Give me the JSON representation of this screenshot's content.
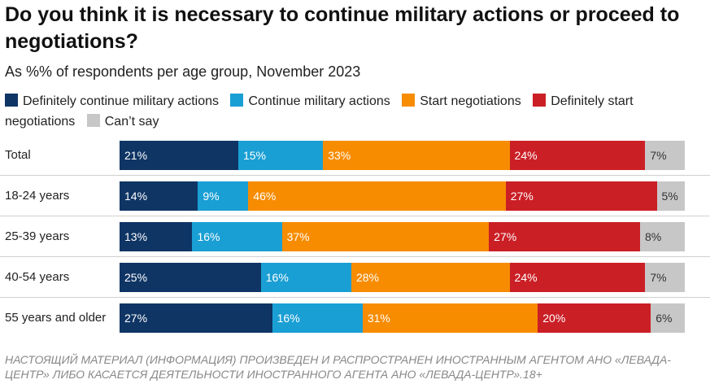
{
  "title": "Do you think it is necessary to continue military actions or proceed to negotiations?",
  "subtitle": "As %% of respondents per age group, November 2023",
  "footer": "НАСТОЯЩИЙ МАТЕРИАЛ (ИНФОРМАЦИЯ) ПРОИЗВЕДЕН И РАСПРОСТРАНЕН ИНОСТРАННЫМ АГЕНТОМ АНО «ЛЕВАДА-ЦЕНТР» ЛИБО КАСАЕТСЯ ДЕЯТЕЛЬНОСТИ ИНОСТРАННОГО АГЕНТА АНО «ЛЕВАДА-ЦЕНТР».18+",
  "chart_data": {
    "type": "bar",
    "orientation": "horizontal",
    "stacked": true,
    "title": "Do you think it is necessary to continue military actions or proceed to negotiations?",
    "subtitle": "As %% of respondents per age group, November 2023",
    "xlabel": "",
    "ylabel": "",
    "xlim": [
      0,
      100
    ],
    "legend_position": "top",
    "categories": [
      "Total",
      "18-24 years",
      "25-39 years",
      "40-54 years",
      "55 years and older"
    ],
    "series": [
      {
        "name": "Definitely continue military actions",
        "color": "#0f3565",
        "label_color": "#ffffff",
        "values": [
          21,
          14,
          13,
          25,
          27
        ]
      },
      {
        "name": "Continue military actions",
        "color": "#1a9fd4",
        "label_color": "#ffffff",
        "values": [
          15,
          9,
          16,
          16,
          16
        ]
      },
      {
        "name": "Start negotiations",
        "color": "#f78c00",
        "label_color": "#ffffff",
        "values": [
          33,
          46,
          37,
          28,
          31
        ]
      },
      {
        "name": "Definitely start negotiations",
        "color": "#cb1f26",
        "label_color": "#ffffff",
        "values": [
          24,
          27,
          27,
          24,
          20
        ]
      },
      {
        "name": "Can’t say",
        "color": "#c7c7c7",
        "label_color": "#333333",
        "values": [
          7,
          5,
          8,
          7,
          6
        ]
      }
    ]
  }
}
